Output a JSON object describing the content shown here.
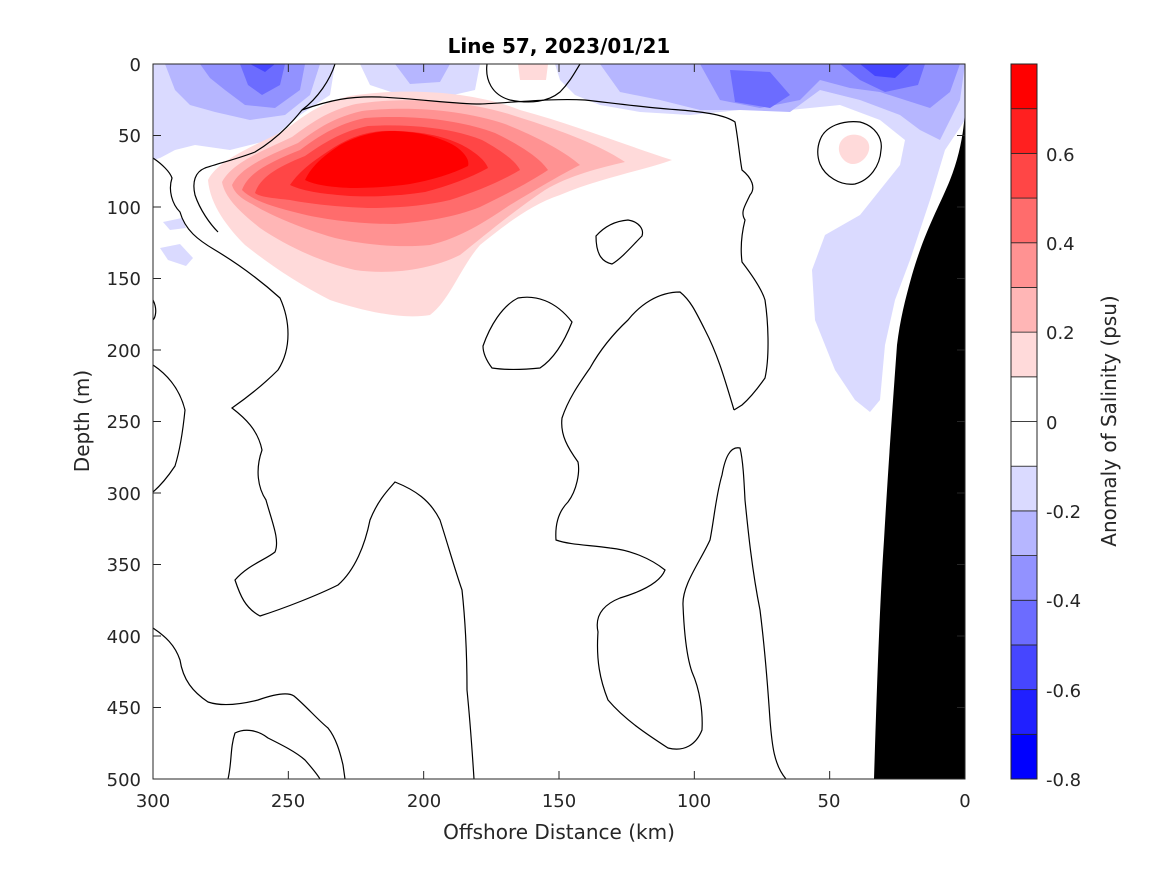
{
  "chart_data": {
    "type": "heatmap",
    "title": "Line 57, 2023/01/21",
    "xlabel": "Offshore Distance (km)",
    "ylabel": "Depth (m)",
    "xlim": [
      300,
      0
    ],
    "ylim": [
      500,
      0
    ],
    "x_reversed": true,
    "y_reversed": true,
    "xticks": [
      300,
      250,
      200,
      150,
      100,
      50,
      0
    ],
    "xtick_labels": [
      "300",
      "250",
      "200",
      "150",
      "100",
      "50",
      "0"
    ],
    "yticks": [
      0,
      50,
      100,
      150,
      200,
      250,
      300,
      350,
      400,
      450,
      500
    ],
    "ytick_labels": [
      "0",
      "50",
      "100",
      "150",
      "200",
      "250",
      "300",
      "350",
      "400",
      "450",
      "500"
    ],
    "colorbar": {
      "label": "Anomaly of Salinity (psu)",
      "range": [
        -0.8,
        0.8
      ],
      "step": 0.1,
      "ticks": [
        -0.8,
        -0.6,
        -0.4,
        -0.2,
        0,
        0.2,
        0.4,
        0.6
      ],
      "tick_labels": [
        "-0.8",
        "-0.6",
        "-0.4",
        "-0.2",
        "0",
        "0.2",
        "0.4",
        "0.6"
      ],
      "colors": [
        "#0000ff",
        "#2020ff",
        "#4646ff",
        "#6c6cff",
        "#9292ff",
        "#b6b6ff",
        "#dadaff",
        "#ffffff",
        "#ffffff",
        "#ffdada",
        "#ffb6b6",
        "#ff9292",
        "#ff6c6c",
        "#ff4646",
        "#ff2020",
        "#ff0000"
      ]
    },
    "regions": [
      {
        "name": "positive-anomaly-core",
        "value_max": 0.7,
        "center": {
          "x": 210,
          "depth": 70
        }
      },
      {
        "name": "negative-anomaly-surface-offshore",
        "value_min": -0.4,
        "center": {
          "x": 260,
          "depth": 15
        }
      },
      {
        "name": "negative-anomaly-surface-nearshore",
        "value_min": -0.6,
        "center": {
          "x": 30,
          "depth": 5
        }
      },
      {
        "name": "negative-anomaly-slope",
        "value_min": -0.2,
        "center": {
          "x": 40,
          "depth": 170
        }
      }
    ],
    "bathymetry": {
      "color": "#000000",
      "x": [
        0,
        20,
        25,
        30,
        33
      ],
      "depth": [
        35,
        150,
        195,
        340,
        500
      ]
    }
  }
}
